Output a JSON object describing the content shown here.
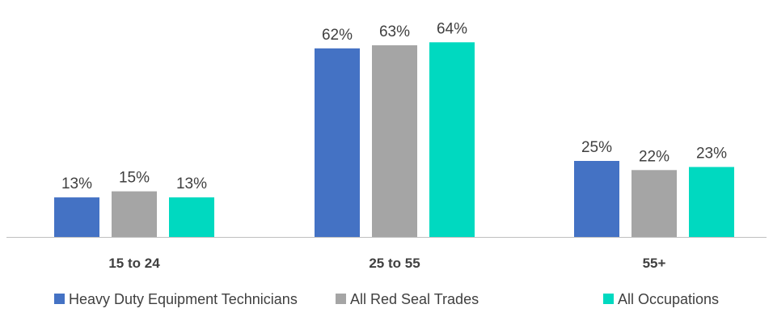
{
  "chart_data": {
    "type": "bar",
    "title": "",
    "xlabel": "",
    "ylabel": "",
    "categories": [
      "15 to 24",
      "25 to 55",
      "55+"
    ],
    "series": [
      {
        "name": "Heavy Duty Equipment Technicians",
        "values": [
          13,
          62,
          25
        ],
        "labels": [
          "13%",
          "62%",
          "25%"
        ],
        "color": "#4472C4"
      },
      {
        "name": "All Red Seal Trades",
        "values": [
          15,
          63,
          22
        ],
        "labels": [
          "15%",
          "63%",
          "22%"
        ],
        "color": "#A5A5A5"
      },
      {
        "name": "All Occupations",
        "values": [
          13,
          64,
          23
        ],
        "labels": [
          "13%",
          "64%",
          "23%"
        ],
        "color": "#00D9C0"
      }
    ],
    "ylim": [
      0,
      67
    ],
    "grid": false,
    "axis_line_color": "#BFBFBF",
    "legend_position": "bottom"
  }
}
